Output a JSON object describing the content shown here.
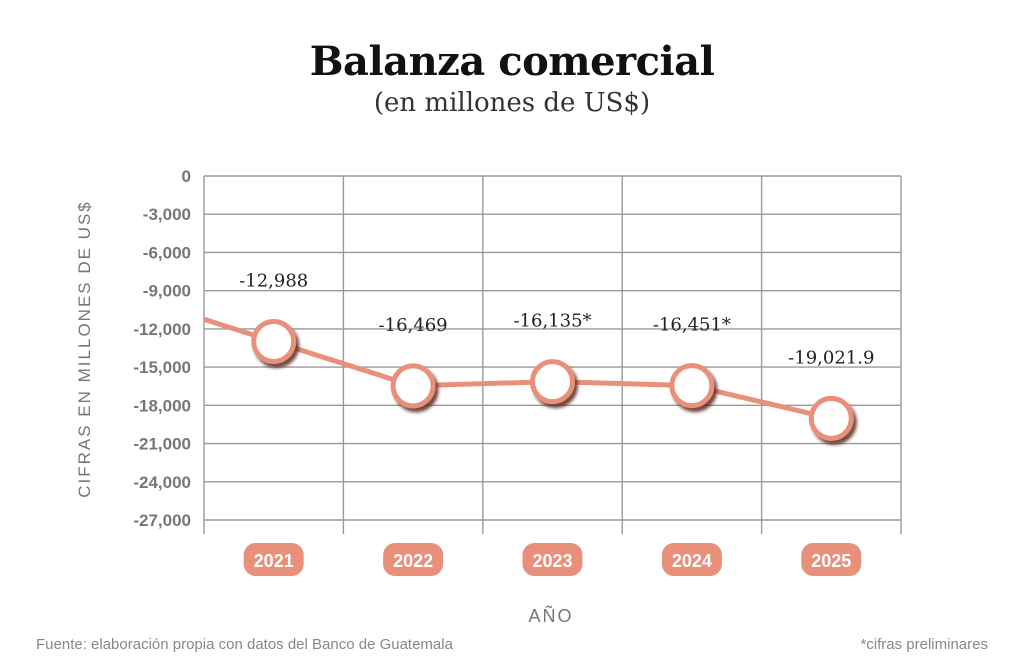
{
  "header": {
    "title": "Balanza comercial",
    "subtitle": "(en millones de US$)"
  },
  "footer": {
    "source": "Fuente: elaboración propia con datos del Banco de Guatemala",
    "note": "*cifras preliminares"
  },
  "colors": {
    "line": "#e8907a",
    "badge": "#e8907a",
    "grid": "#9a9a9a",
    "axis_text": "#777777"
  },
  "chart_data": {
    "type": "line",
    "title": "Balanza comercial",
    "subtitle": "(en millones de US$)",
    "xlabel": "AÑO",
    "ylabel": "CIFRAS EN MILLONES DE US$",
    "categories": [
      "2021",
      "2022",
      "2023",
      "2024",
      "2025"
    ],
    "series": [
      {
        "values": [
          -12988,
          -16469,
          -16135,
          -16451,
          -19021.9
        ],
        "labels": [
          "-12,988",
          "-16,469",
          "-16,135*",
          "-16,451*",
          "-19,021.9"
        ]
      }
    ],
    "ylim": [
      -27000,
      0
    ],
    "yticks": [
      0,
      -3000,
      -6000,
      -9000,
      -12000,
      -15000,
      -18000,
      -21000,
      -24000,
      -27000
    ],
    "ytick_labels": [
      "0",
      "-3,000",
      "-6,000",
      "-9,000",
      "-12,000",
      "-15,000",
      "-18,000",
      "-21,000",
      "-24,000",
      "-27,000"
    ],
    "grid": true
  }
}
